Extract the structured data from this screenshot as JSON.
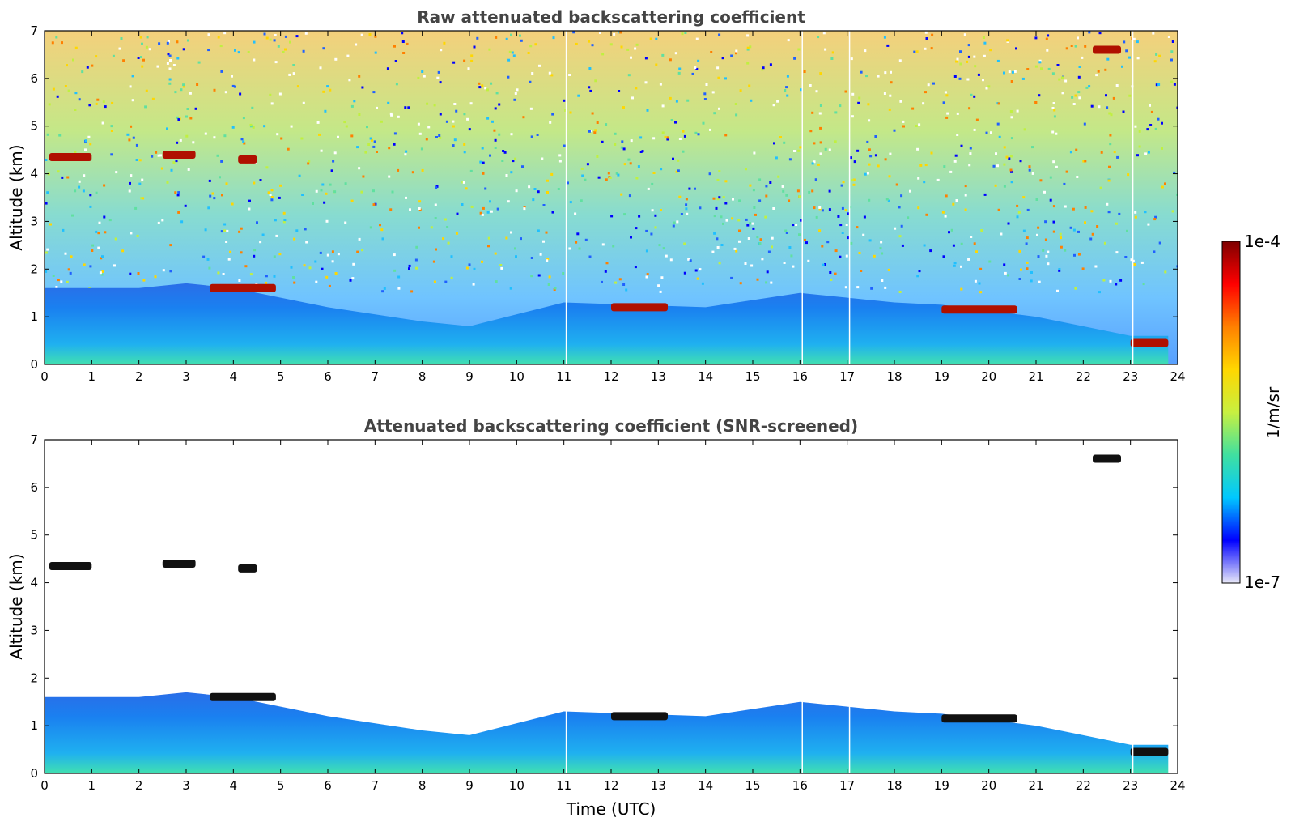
{
  "chart_data": [
    {
      "type": "heatmap",
      "title": "Raw attenuated backscattering coefficient",
      "xlabel": "",
      "ylabel": "Altitude (km)",
      "xlim": [
        0,
        24
      ],
      "ylim": [
        0,
        7
      ],
      "x_ticks": [
        "0",
        "1",
        "2",
        "3",
        "4",
        "5",
        "6",
        "7",
        "8",
        "9",
        "10",
        "11",
        "12",
        "13",
        "14",
        "15",
        "16",
        "17",
        "18",
        "19",
        "20",
        "21",
        "22",
        "23",
        "24"
      ],
      "y_ticks": [
        "0",
        "1",
        "2",
        "3",
        "4",
        "5",
        "6",
        "7"
      ],
      "grid": false,
      "boundary_layer_top_km": [
        {
          "x": 0,
          "y": 1.6
        },
        {
          "x": 2,
          "y": 1.6
        },
        {
          "x": 3,
          "y": 1.7
        },
        {
          "x": 4,
          "y": 1.6
        },
        {
          "x": 6,
          "y": 1.2
        },
        {
          "x": 8,
          "y": 0.9
        },
        {
          "x": 9,
          "y": 0.8
        },
        {
          "x": 11,
          "y": 1.3
        },
        {
          "x": 14,
          "y": 1.2
        },
        {
          "x": 16,
          "y": 1.5
        },
        {
          "x": 18,
          "y": 1.3
        },
        {
          "x": 19,
          "y": 1.25
        },
        {
          "x": 21,
          "y": 1.0
        },
        {
          "x": 22,
          "y": 0.8
        },
        {
          "x": 23,
          "y": 0.6
        },
        {
          "x": 23.8,
          "y": 0.6
        }
      ],
      "cloud_layers": [
        {
          "x_start": 0.1,
          "x_end": 1.0,
          "altitude_km": 4.35
        },
        {
          "x_start": 2.5,
          "x_end": 3.2,
          "altitude_km": 4.4
        },
        {
          "x_start": 4.1,
          "x_end": 4.5,
          "altitude_km": 4.3
        },
        {
          "x_start": 3.5,
          "x_end": 4.9,
          "altitude_km": 1.6
        },
        {
          "x_start": 12.0,
          "x_end": 13.2,
          "altitude_km": 1.2
        },
        {
          "x_start": 19.0,
          "x_end": 20.6,
          "altitude_km": 1.15
        },
        {
          "x_start": 22.2,
          "x_end": 22.8,
          "altitude_km": 6.6
        },
        {
          "x_start": 23.0,
          "x_end": 23.8,
          "altitude_km": 0.45
        }
      ],
      "data_gaps_utc": [
        11.05,
        16.05,
        17.05,
        23.05
      ]
    },
    {
      "type": "heatmap",
      "title": "Attenuated backscattering coefficient (SNR-screened)",
      "xlabel": "Time (UTC)",
      "ylabel": "Altitude (km)",
      "xlim": [
        0,
        24
      ],
      "ylim": [
        0,
        7
      ],
      "x_ticks": [
        "0",
        "1",
        "2",
        "3",
        "4",
        "5",
        "6",
        "7",
        "8",
        "9",
        "10",
        "11",
        "12",
        "13",
        "14",
        "15",
        "16",
        "17",
        "18",
        "19",
        "20",
        "21",
        "22",
        "23",
        "24"
      ],
      "y_ticks": [
        "0",
        "1",
        "2",
        "3",
        "4",
        "5",
        "6",
        "7"
      ],
      "grid": false,
      "boundary_layer_top_km": [
        {
          "x": 0,
          "y": 1.6
        },
        {
          "x": 2,
          "y": 1.6
        },
        {
          "x": 3,
          "y": 1.7
        },
        {
          "x": 4,
          "y": 1.6
        },
        {
          "x": 6,
          "y": 1.2
        },
        {
          "x": 8,
          "y": 0.9
        },
        {
          "x": 9,
          "y": 0.8
        },
        {
          "x": 11,
          "y": 1.3
        },
        {
          "x": 14,
          "y": 1.2
        },
        {
          "x": 16,
          "y": 1.5
        },
        {
          "x": 18,
          "y": 1.3
        },
        {
          "x": 19,
          "y": 1.25
        },
        {
          "x": 21,
          "y": 1.0
        },
        {
          "x": 22,
          "y": 0.8
        },
        {
          "x": 23,
          "y": 0.6
        },
        {
          "x": 23.8,
          "y": 0.6
        }
      ],
      "cloud_layers": [
        {
          "x_start": 0.1,
          "x_end": 1.0,
          "altitude_km": 4.35
        },
        {
          "x_start": 2.5,
          "x_end": 3.2,
          "altitude_km": 4.4
        },
        {
          "x_start": 4.1,
          "x_end": 4.5,
          "altitude_km": 4.3
        },
        {
          "x_start": 3.5,
          "x_end": 4.9,
          "altitude_km": 1.6
        },
        {
          "x_start": 12.0,
          "x_end": 13.2,
          "altitude_km": 1.2
        },
        {
          "x_start": 19.0,
          "x_end": 20.6,
          "altitude_km": 1.15
        },
        {
          "x_start": 22.2,
          "x_end": 22.8,
          "altitude_km": 6.6
        },
        {
          "x_start": 23.0,
          "x_end": 23.8,
          "altitude_km": 0.45
        }
      ],
      "data_gaps_utc": [
        11.05,
        16.05,
        17.05,
        23.05
      ]
    }
  ],
  "colorbar": {
    "label": "1/m/sr",
    "max_label": "1e-4",
    "min_label": "1e-7",
    "scale": "log",
    "colormap": "jet",
    "stops": [
      "#e8e8f8",
      "#0000ff",
      "#00c8ff",
      "#40e0a0",
      "#c8f040",
      "#ffd700",
      "#ff8000",
      "#ff0000",
      "#7f0000"
    ]
  }
}
